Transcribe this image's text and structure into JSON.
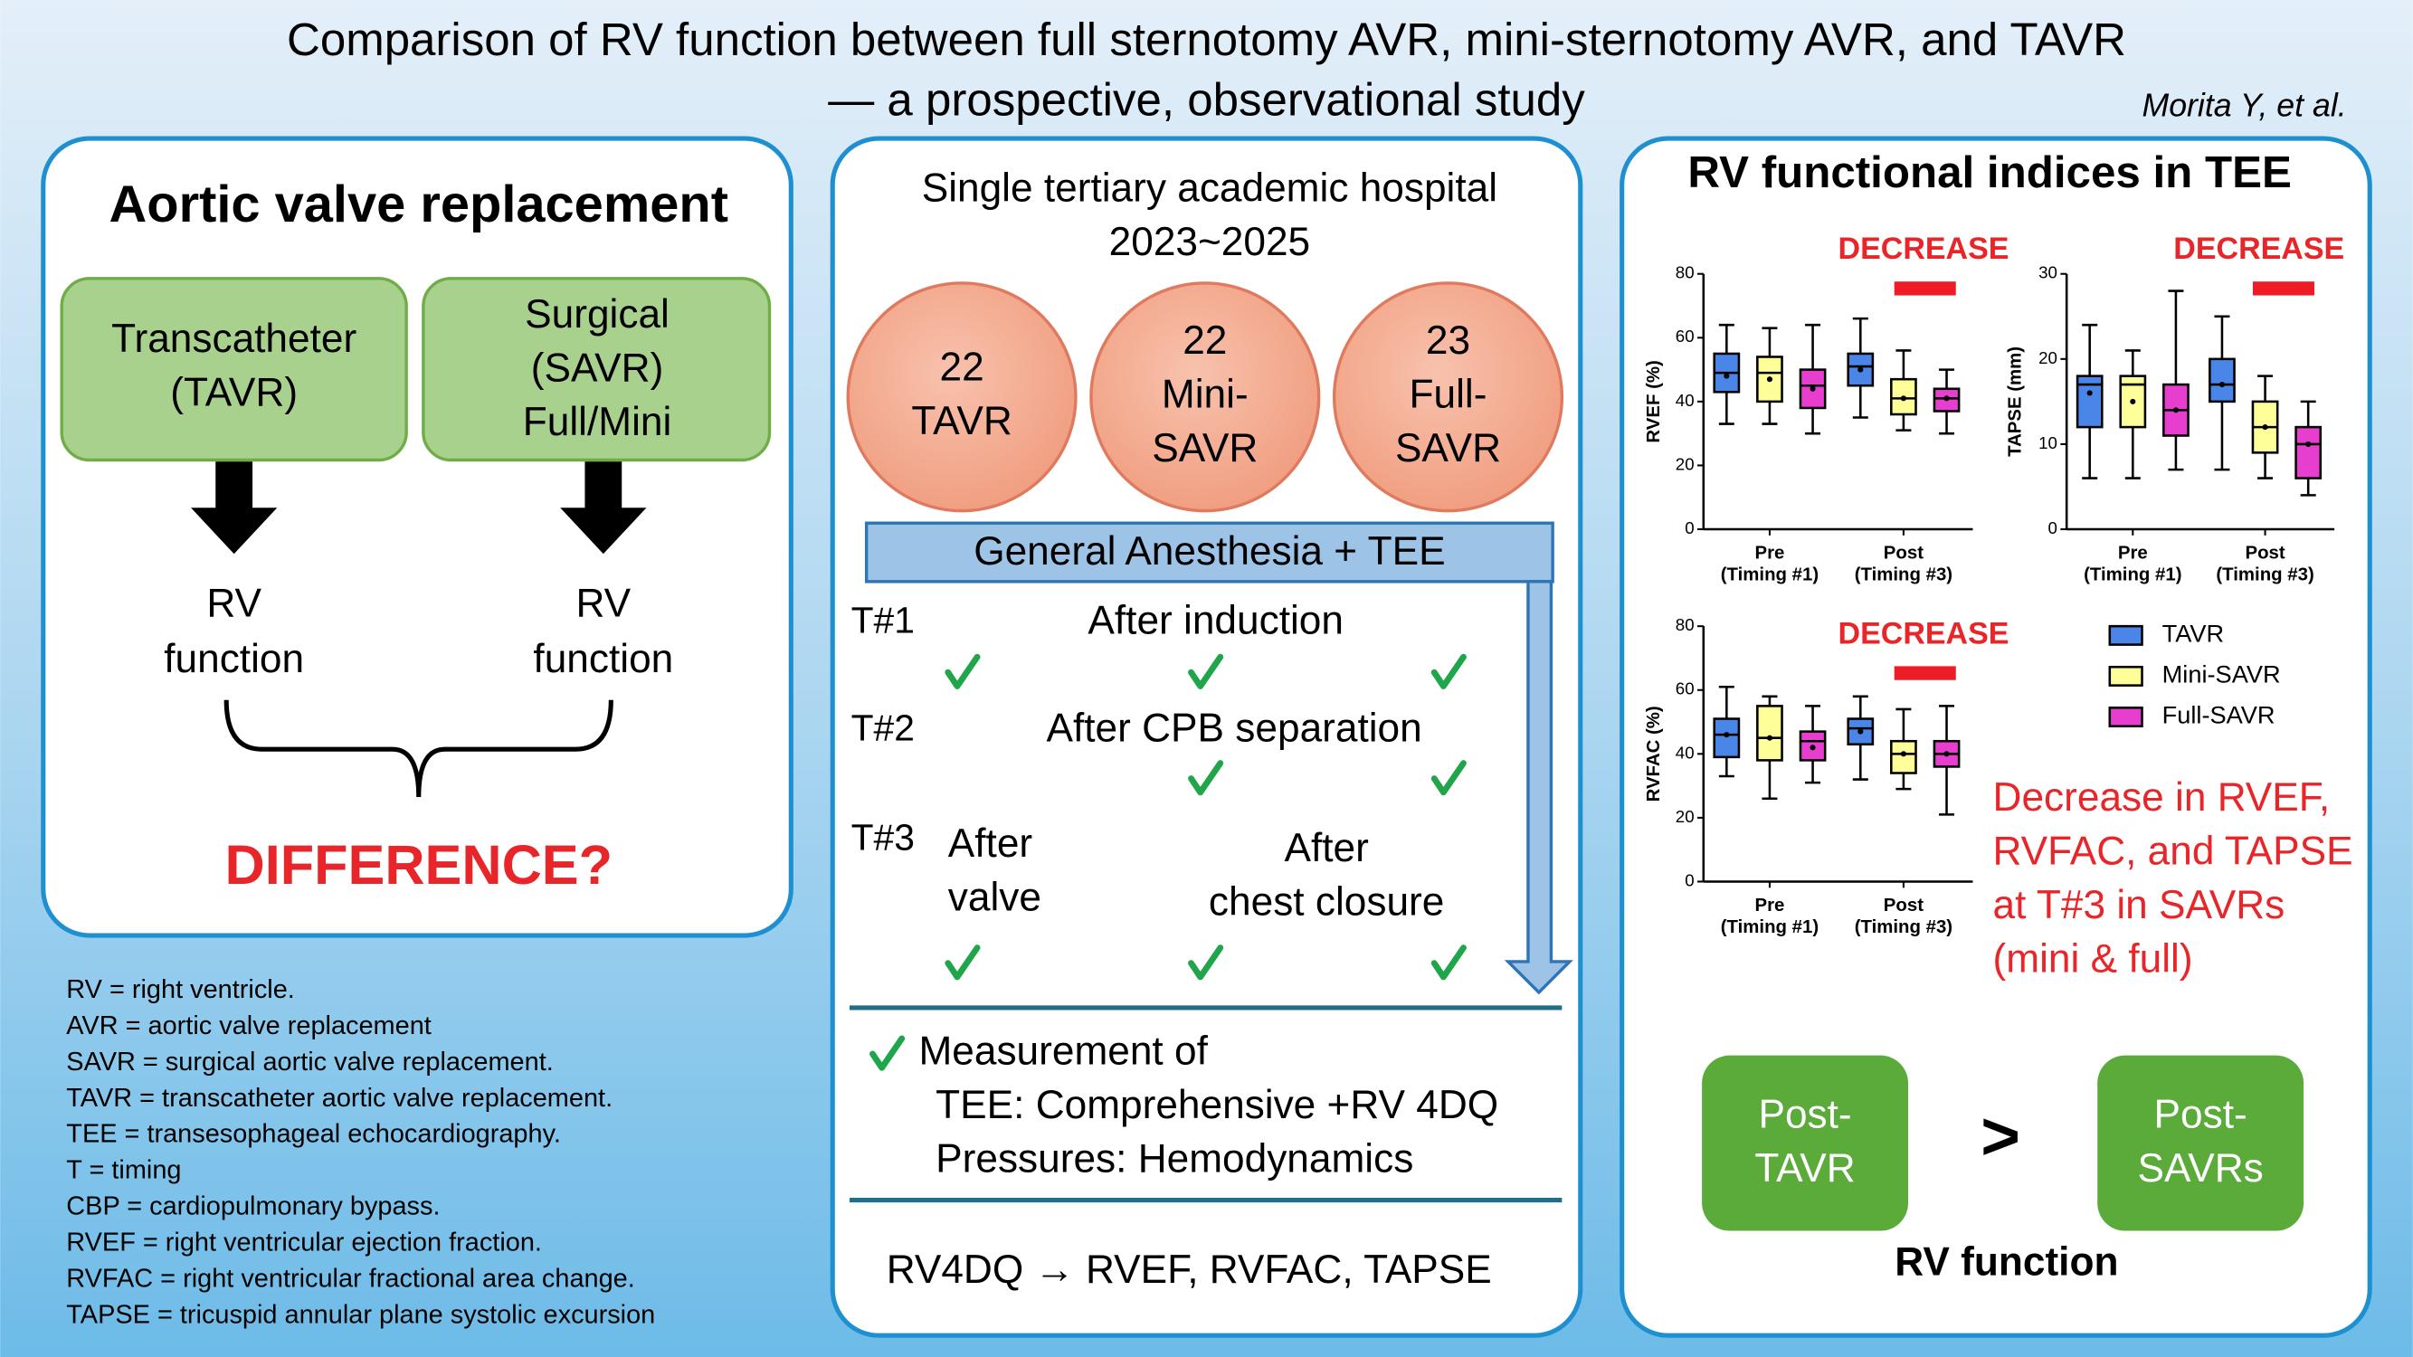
{
  "header": {
    "title_lines": [
      "Comparison of RV function between full sternotomy AVR, mini-sternotomy AVR, and TAVR",
      "— a prospective, observational study"
    ],
    "author": "Morita Y, et al."
  },
  "left": {
    "title": "Aortic valve replacement",
    "options": [
      {
        "lines": [
          "Transcatheter",
          "(TAVR)"
        ],
        "outcome": [
          "RV",
          "function"
        ]
      },
      {
        "lines": [
          "Surgical",
          "(SAVR)",
          "Full/Mini"
        ],
        "outcome": [
          "RV",
          "function"
        ]
      }
    ],
    "question": "DIFFERENCE?"
  },
  "abbreviations": [
    "RV = right ventricle.",
    "AVR = aortic valve replacement",
    "SAVR = surgical aortic valve replacement.",
    "TAVR = transcatheter aortic valve replacement.",
    "TEE = transesophageal echocardiography.",
    "T = timing",
    "CBP = cardiopulmonary bypass.",
    "RVEF = right ventricular ejection fraction.",
    "RVFAC = right ventricular fractional area change.",
    "TAPSE = tricuspid annular plane systolic excursion"
  ],
  "middle": {
    "setting": [
      "Single tertiary academic hospital",
      "2023~2025"
    ],
    "cohorts": [
      {
        "n": 22,
        "label": [
          "TAVR"
        ]
      },
      {
        "n": 22,
        "label": [
          "Mini-",
          "SAVR"
        ]
      },
      {
        "n": 23,
        "label": [
          "Full-",
          "SAVR"
        ]
      }
    ],
    "procedure": "General Anesthesia + TEE",
    "timings": [
      {
        "label": "T#1",
        "events": [
          {
            "lines": [
              "After induction"
            ]
          }
        ],
        "checks": [
          true,
          true,
          true
        ]
      },
      {
        "label": "T#2",
        "events": [
          {
            "lines": [
              "After CPB separation"
            ]
          }
        ],
        "checks": [
          false,
          true,
          true
        ]
      },
      {
        "label": "T#3",
        "events": [
          {
            "lines": [
              "After",
              "valve"
            ]
          },
          {
            "lines": [
              "After",
              "chest closure"
            ]
          }
        ],
        "checks": [
          true,
          true,
          true
        ]
      }
    ],
    "measurement": {
      "title": "Measurement of",
      "items": [
        "TEE: Comprehensive +RV 4DQ",
        "Pressures: Hemodynamics"
      ]
    },
    "output": "RV4DQ → RVEF, RVFAC, TAPSE"
  },
  "right": {
    "title": "RV functional indices in TEE",
    "legend": [
      {
        "name": "TAVR",
        "color": "#4a86e8"
      },
      {
        "name": "Mini-SAVR",
        "color": "#ffff99"
      },
      {
        "name": "Full-SAVR",
        "color": "#e83ecf"
      }
    ],
    "finding": [
      "Decrease in RVEF,",
      "RVFAC, and TAPSE",
      "at T#3 in SAVRs",
      "(mini & full)"
    ],
    "comparison": {
      "left": [
        "Post-",
        "TAVR"
      ],
      "symbol": ">",
      "right": [
        "Post-",
        "SAVRs"
      ],
      "caption": "RV function"
    }
  },
  "chart_data": [
    {
      "type": "box",
      "ylabel": "RVEF (%)",
      "annotation": "DECREASE",
      "categories": [
        "Pre",
        "Post"
      ],
      "category_notes": [
        "(Timing #1)",
        "(Timing #3)"
      ],
      "ylim": [
        0,
        80
      ],
      "yticks": [
        0,
        20,
        40,
        60,
        80
      ],
      "series": [
        {
          "color": "#4a86e8",
          "values": [
            {
              "min": 33,
              "q1": 43,
              "median": 49,
              "q3": 55,
              "max": 64,
              "mean": 48
            },
            {
              "min": 35,
              "q1": 45,
              "median": 51,
              "q3": 55,
              "max": 66,
              "mean": 50
            }
          ]
        },
        {
          "color": "#ffff99",
          "values": [
            {
              "min": 33,
              "q1": 40,
              "median": 49,
              "q3": 54,
              "max": 63,
              "mean": 47
            },
            {
              "min": 31,
              "q1": 36,
              "median": 41,
              "q3": 47,
              "max": 56,
              "mean": 41
            }
          ]
        },
        {
          "color": "#e83ecf",
          "values": [
            {
              "min": 30,
              "q1": 38,
              "median": 45,
              "q3": 50,
              "max": 64,
              "mean": 44
            },
            {
              "min": 30,
              "q1": 37,
              "median": 41,
              "q3": 44,
              "max": 50,
              "mean": 41
            }
          ]
        }
      ]
    },
    {
      "type": "box",
      "ylabel": "TAPSE (mm)",
      "annotation": "DECREASE",
      "categories": [
        "Pre",
        "Post"
      ],
      "category_notes": [
        "(Timing #1)",
        "(Timing #3)"
      ],
      "ylim": [
        0,
        30
      ],
      "yticks": [
        0,
        10,
        20,
        30
      ],
      "series": [
        {
          "color": "#4a86e8",
          "values": [
            {
              "min": 6,
              "q1": 12,
              "median": 17,
              "q3": 18,
              "max": 24,
              "mean": 16
            },
            {
              "min": 7,
              "q1": 15,
              "median": 17,
              "q3": 20,
              "max": 25,
              "mean": 17
            }
          ]
        },
        {
          "color": "#ffff99",
          "values": [
            {
              "min": 6,
              "q1": 12,
              "median": 17,
              "q3": 18,
              "max": 21,
              "mean": 15
            },
            {
              "min": 6,
              "q1": 9,
              "median": 12,
              "q3": 15,
              "max": 18,
              "mean": 12
            }
          ]
        },
        {
          "color": "#e83ecf",
          "values": [
            {
              "min": 7,
              "q1": 11,
              "median": 14,
              "q3": 17,
              "max": 28,
              "mean": 14
            },
            {
              "min": 4,
              "q1": 6,
              "median": 10,
              "q3": 12,
              "max": 15,
              "mean": 10
            }
          ]
        }
      ]
    },
    {
      "type": "box",
      "ylabel": "RVFAC (%)",
      "annotation": "DECREASE",
      "categories": [
        "Pre",
        "Post"
      ],
      "category_notes": [
        "(Timing #1)",
        "(Timing #3)"
      ],
      "ylim": [
        0,
        80
      ],
      "yticks": [
        0,
        20,
        40,
        60,
        80
      ],
      "series": [
        {
          "color": "#4a86e8",
          "values": [
            {
              "min": 33,
              "q1": 39,
              "median": 46,
              "q3": 51,
              "max": 61,
              "mean": 46
            },
            {
              "min": 32,
              "q1": 43,
              "median": 48,
              "q3": 51,
              "max": 58,
              "mean": 47
            }
          ]
        },
        {
          "color": "#ffff99",
          "values": [
            {
              "min": 26,
              "q1": 38,
              "median": 45,
              "q3": 55,
              "max": 58,
              "mean": 45
            },
            {
              "min": 29,
              "q1": 34,
              "median": 40,
              "q3": 44,
              "max": 54,
              "mean": 40
            }
          ]
        },
        {
          "color": "#e83ecf",
          "values": [
            {
              "min": 31,
              "q1": 38,
              "median": 44,
              "q3": 47,
              "max": 55,
              "mean": 42
            },
            {
              "min": 21,
              "q1": 36,
              "median": 40,
              "q3": 44,
              "max": 55,
              "mean": 40
            }
          ]
        }
      ]
    }
  ]
}
